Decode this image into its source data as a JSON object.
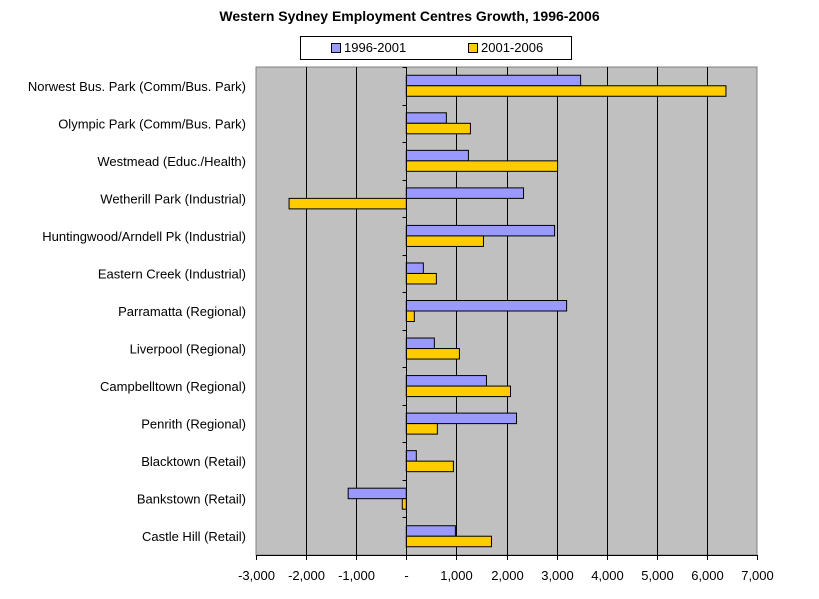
{
  "chart_data": {
    "type": "bar",
    "orientation": "horizontal",
    "title": "Western Sydney Employment Centres Growth, 1996-2006",
    "xlabel": "",
    "ylabel": "",
    "xlim": [
      -3000,
      7000
    ],
    "x_ticks": [
      -3000,
      -2000,
      -1000,
      0,
      1000,
      2000,
      3000,
      4000,
      5000,
      6000,
      7000
    ],
    "x_tick_labels": [
      "-3,000",
      "-2,000",
      "-1,000",
      "-",
      "1,000",
      "2,000",
      "3,000",
      "4,000",
      "5,000",
      "6,000",
      "7,000"
    ],
    "grid": "vertical major gridlines",
    "legend_position": "top-center",
    "plot_background": "#C0C0C0",
    "categories": [
      "Norwest Bus. Park (Comm/Bus. Park)",
      "Olympic Park (Comm/Bus. Park)",
      "Westmead (Educ./Health)",
      "Wetherill Park (Industrial)",
      "Huntingwood/Arndell Pk (Industrial)",
      "Eastern Creek (Industrial)",
      "Parramatta (Regional)",
      "Liverpool (Regional)",
      "Campbelltown (Regional)",
      "Penrith (Regional)",
      "Blacktown (Retail)",
      "Bankstown (Retail)",
      "Castle Hill (Retail)"
    ],
    "series": [
      {
        "name": "1996-2001",
        "color": "#9999FF",
        "values": [
          3480,
          800,
          1240,
          2340,
          2960,
          340,
          3200,
          560,
          1600,
          2200,
          200,
          -1160,
          980
        ]
      },
      {
        "name": "2001-2006",
        "color": "#FFCC00",
        "values": [
          6380,
          1280,
          3020,
          -2340,
          1540,
          600,
          160,
          1060,
          2080,
          620,
          940,
          -80,
          1700
        ]
      }
    ]
  }
}
